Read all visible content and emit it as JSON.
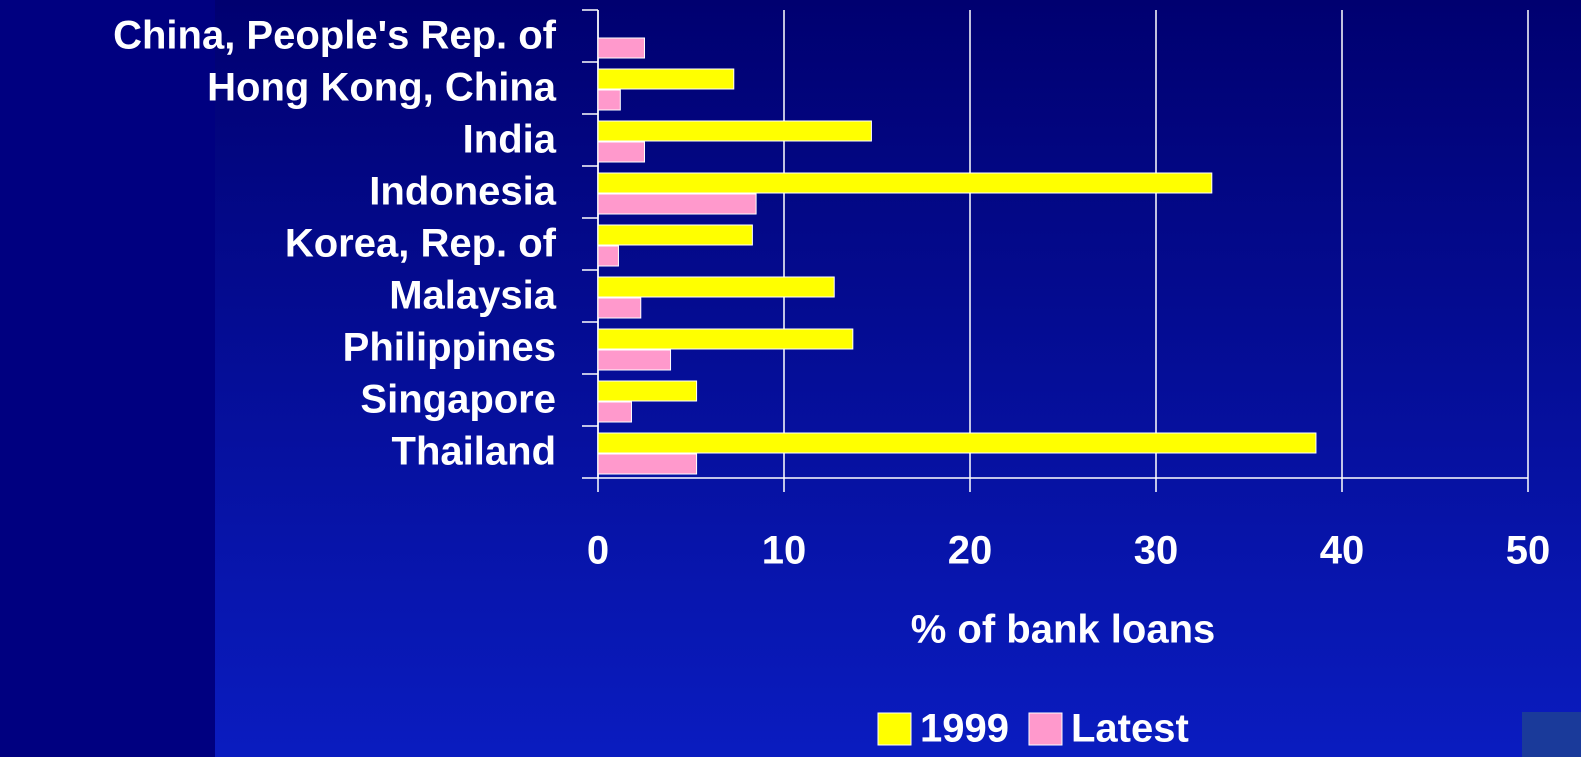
{
  "chart_data": {
    "type": "bar",
    "orientation": "horizontal",
    "categories": [
      "China, People's Rep. of",
      "Hong Kong, China",
      "India",
      "Indonesia",
      "Korea, Rep. of",
      "Malaysia",
      "Philippines",
      "Singapore",
      "Thailand"
    ],
    "series": [
      {
        "name": "1999",
        "color": "#ffff00",
        "values": [
          null,
          7.3,
          14.7,
          33.0,
          8.3,
          12.7,
          13.7,
          5.3,
          38.6
        ]
      },
      {
        "name": "Latest",
        "color": "#ff99cc",
        "values": [
          2.5,
          1.2,
          2.5,
          8.5,
          1.1,
          2.3,
          3.9,
          1.8,
          5.3
        ]
      }
    ],
    "xlabel": "% of bank loans",
    "xlim": [
      0,
      50
    ],
    "xticks": [
      0,
      10,
      20,
      30,
      40,
      50
    ],
    "grid": true,
    "legend": "bottom"
  }
}
